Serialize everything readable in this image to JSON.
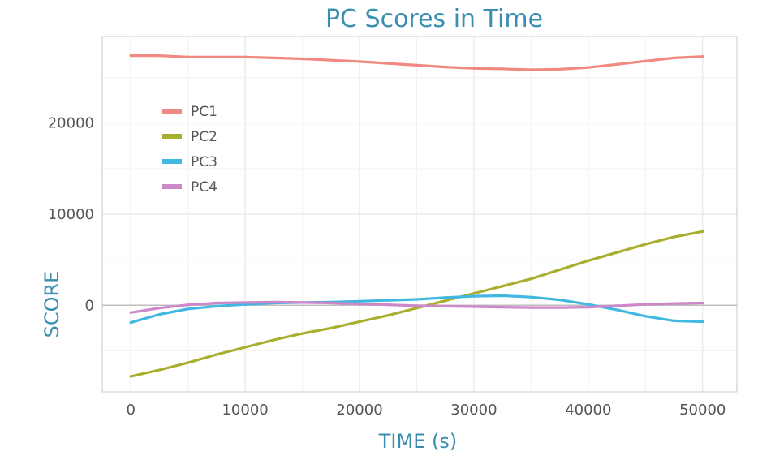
{
  "chart_data": {
    "type": "line",
    "title": "PC Scores in Time",
    "xlabel": "TIME (s)",
    "ylabel": "SCORE",
    "xlim": [
      -2500,
      53000
    ],
    "ylim": [
      -9500,
      29500
    ],
    "x_ticks": [
      0,
      10000,
      20000,
      30000,
      40000,
      50000
    ],
    "x_tick_labels": [
      "0",
      "10000",
      "20000",
      "30000",
      "40000",
      "50000"
    ],
    "y_ticks": [
      0,
      10000,
      20000
    ],
    "y_tick_labels": [
      "0",
      "10000",
      "20000"
    ],
    "grid": true,
    "legend_position": "top-left",
    "x": [
      0,
      2500,
      5000,
      7500,
      10000,
      12500,
      15000,
      17500,
      20000,
      22500,
      25000,
      27500,
      30000,
      32500,
      35000,
      37500,
      40000,
      42500,
      45000,
      47500,
      50000
    ],
    "series": [
      {
        "name": "PC1",
        "color": "#f08a80",
        "values": [
          27400,
          27400,
          27250,
          27250,
          27250,
          27150,
          27050,
          26900,
          26750,
          26550,
          26350,
          26150,
          26000,
          25950,
          25850,
          25900,
          26100,
          26450,
          26800,
          27150,
          27300
        ]
      },
      {
        "name": "PC2",
        "color": "#a8ae2e",
        "values": [
          -7800,
          -7100,
          -6300,
          -5400,
          -4600,
          -3800,
          -3100,
          -2500,
          -1800,
          -1100,
          -300,
          500,
          1300,
          2100,
          2900,
          3900,
          4900,
          5800,
          6700,
          7500,
          8100
        ]
      },
      {
        "name": "PC3",
        "color": "#41b8e2",
        "values": [
          -1900,
          -1000,
          -400,
          -100,
          100,
          250,
          300,
          350,
          450,
          550,
          650,
          850,
          1000,
          1050,
          900,
          600,
          100,
          -500,
          -1200,
          -1700,
          -1800
        ]
      },
      {
        "name": "PC4",
        "color": "#cc88c8",
        "values": [
          -800,
          -300,
          50,
          250,
          300,
          350,
          300,
          250,
          150,
          50,
          -50,
          -100,
          -150,
          -200,
          -250,
          -250,
          -200,
          -50,
          100,
          200,
          250
        ]
      }
    ]
  }
}
